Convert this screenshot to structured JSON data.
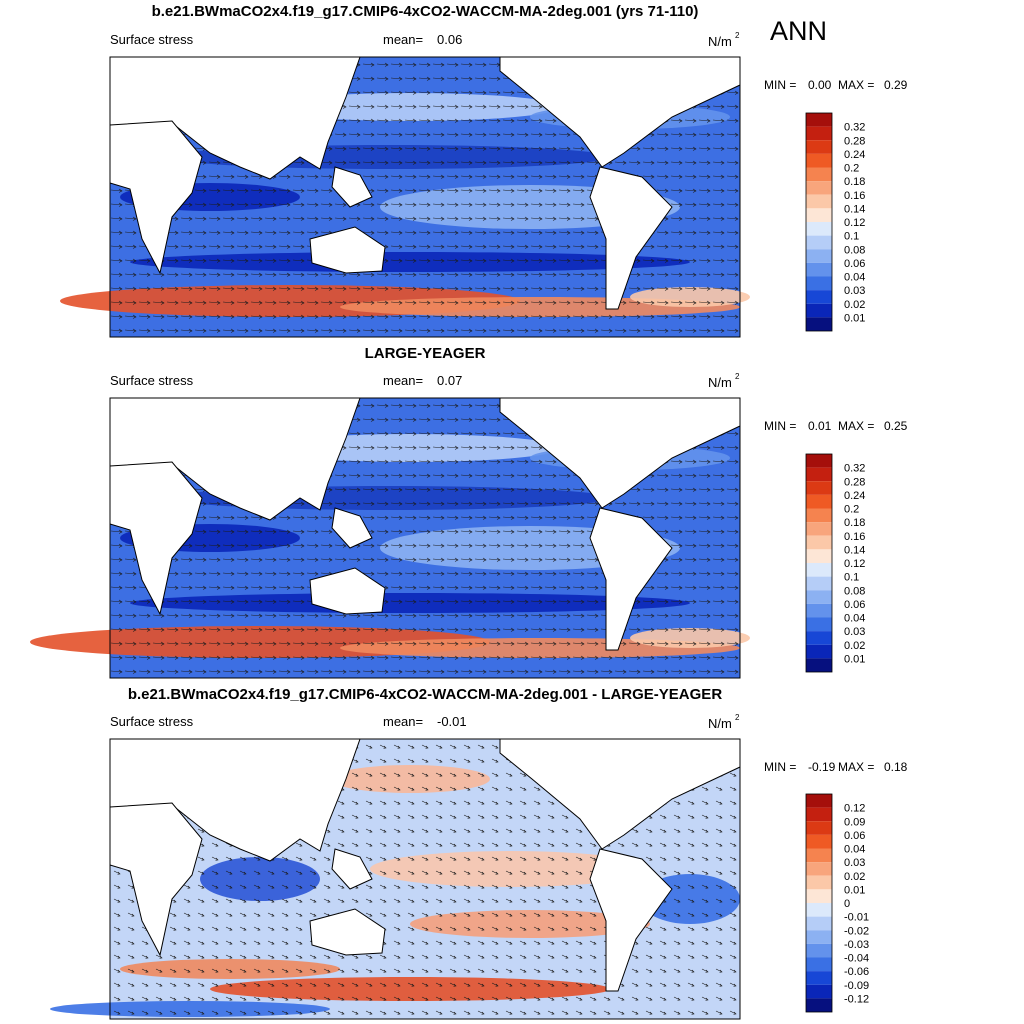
{
  "season": "ANN",
  "panels": [
    {
      "title": "b.e21.BWmaCO2x4.f19_g17.CMIP6-4xCO2-WACCM-MA-2deg.001 (yrs 71-110)",
      "left_label": "Surface stress",
      "mean_label": "mean=",
      "mean": "0.06",
      "unit": "N/m",
      "unit_exp": "2",
      "min_label": "MIN =",
      "min": "0.00",
      "max_label": "MAX =",
      "max": "0.29",
      "colorbar": {
        "labels": [
          "0.32",
          "0.28",
          "0.24",
          "0.2",
          "0.18",
          "0.16",
          "0.14",
          "0.12",
          "0.1",
          "0.08",
          "0.06",
          "0.04",
          "0.03",
          "0.02",
          "0.01"
        ],
        "colors": [
          "#a50f0b",
          "#c42010",
          "#dc3a14",
          "#ef5a24",
          "#f5834f",
          "#f8a57c",
          "#fbc8a8",
          "#fde6d6",
          "#dce9fb",
          "#b5cdf7",
          "#8cb1f2",
          "#6392ec",
          "#3a70e4",
          "#1747d6",
          "#0a26b8",
          "#06107f"
        ]
      }
    },
    {
      "title": "LARGE-YEAGER",
      "left_label": "Surface stress",
      "mean_label": "mean=",
      "mean": "0.07",
      "unit": "N/m",
      "unit_exp": "2",
      "min_label": "MIN =",
      "min": "0.01",
      "max_label": "MAX =",
      "max": "0.25",
      "colorbar": {
        "labels": [
          "0.32",
          "0.28",
          "0.24",
          "0.2",
          "0.18",
          "0.16",
          "0.14",
          "0.12",
          "0.1",
          "0.08",
          "0.06",
          "0.04",
          "0.03",
          "0.02",
          "0.01"
        ],
        "colors": [
          "#a50f0b",
          "#c42010",
          "#dc3a14",
          "#ef5a24",
          "#f5834f",
          "#f8a57c",
          "#fbc8a8",
          "#fde6d6",
          "#dce9fb",
          "#b5cdf7",
          "#8cb1f2",
          "#6392ec",
          "#3a70e4",
          "#1747d6",
          "#0a26b8",
          "#06107f"
        ]
      }
    },
    {
      "title": "b.e21.BWmaCO2x4.f19_g17.CMIP6-4xCO2-WACCM-MA-2deg.001 - LARGE-YEAGER",
      "left_label": "Surface stress",
      "mean_label": "mean=",
      "mean": "-0.01",
      "unit": "N/m",
      "unit_exp": "2",
      "min_label": "MIN =",
      "min": "-0.19",
      "max_label": "MAX =",
      "max": "0.18",
      "colorbar": {
        "labels": [
          "0.12",
          "0.09",
          "0.06",
          "0.04",
          "0.03",
          "0.02",
          "0.01",
          "0",
          "-0.01",
          "-0.02",
          "-0.03",
          "-0.04",
          "-0.06",
          "-0.09",
          "-0.12"
        ],
        "colors": [
          "#a50f0b",
          "#c42010",
          "#dc3a14",
          "#ef5a24",
          "#f5834f",
          "#f8a57c",
          "#fbc8a8",
          "#fde6d6",
          "#dce9fb",
          "#b5cdf7",
          "#8cb1f2",
          "#6392ec",
          "#3a70e4",
          "#1747d6",
          "#0a26b8",
          "#06107f"
        ]
      }
    }
  ]
}
